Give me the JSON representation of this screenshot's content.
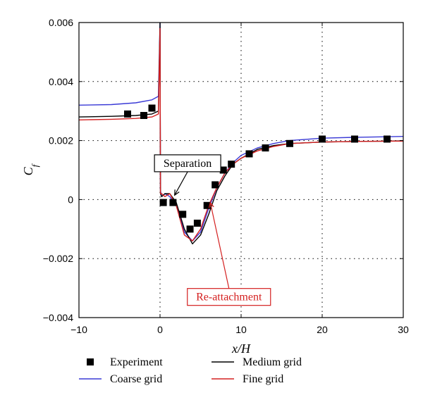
{
  "chart_data": {
    "type": "line",
    "xlabel": "x/H",
    "ylabel": "C_f",
    "xlim": [
      -10,
      30
    ],
    "ylim": [
      -0.004,
      0.006
    ],
    "x_ticks": [
      {
        "v": -10,
        "label": "−10"
      },
      {
        "v": 0,
        "label": "0"
      },
      {
        "v": 10,
        "label": "10"
      },
      {
        "v": 20,
        "label": "20"
      },
      {
        "v": 30,
        "label": "30"
      }
    ],
    "y_ticks": [
      {
        "v": -0.004,
        "label": "−0.004"
      },
      {
        "v": -0.002,
        "label": "−0.002"
      },
      {
        "v": 0,
        "label": "0"
      },
      {
        "v": 0.002,
        "label": "0.002"
      },
      {
        "v": 0.004,
        "label": "0.004"
      },
      {
        "v": 0.006,
        "label": "0.006"
      }
    ],
    "grid": "dotted at major ticks",
    "series": [
      {
        "name": "Coarse grid",
        "style": "line",
        "color": "#3a3ad6",
        "x": [
          -10,
          -6,
          -3,
          -1,
          -0.2,
          0,
          0.05,
          0.2,
          0.6,
          1.2,
          2,
          3,
          4,
          5,
          6,
          7,
          8,
          9,
          10,
          12,
          14,
          16,
          20,
          24,
          28,
          30
        ],
        "y": [
          0.0032,
          0.00322,
          0.00328,
          0.00338,
          0.0035,
          0.006,
          0.0003,
          0.0001,
          0.0002,
          0.0001,
          -0.0002,
          -0.0011,
          -0.0014,
          -0.0011,
          -0.0003,
          0.0004,
          0.0009,
          0.00125,
          0.0015,
          0.00175,
          0.0019,
          0.002,
          0.00208,
          0.00211,
          0.00213,
          0.00214
        ]
      },
      {
        "name": "Medium grid",
        "style": "line",
        "color": "#000000",
        "x": [
          -10,
          -6,
          -3,
          -1,
          -0.2,
          0,
          0.05,
          0.2,
          0.6,
          1.2,
          2,
          3,
          4,
          5,
          6,
          7,
          8,
          9,
          10,
          12,
          14,
          16,
          20,
          24,
          28,
          30
        ],
        "y": [
          0.0028,
          0.00282,
          0.00285,
          0.0029,
          0.003,
          0.006,
          0.0002,
          0.0001,
          0.0002,
          0.0002,
          -0.0001,
          -0.001,
          -0.0015,
          -0.0012,
          -0.0005,
          0.0003,
          0.0008,
          0.0012,
          0.0014,
          0.0017,
          0.00183,
          0.0019,
          0.00195,
          0.00197,
          0.00198,
          0.00199
        ]
      },
      {
        "name": "Fine grid",
        "style": "line",
        "color": "#d42020",
        "x": [
          -10,
          -6,
          -3,
          -1,
          -0.2,
          0,
          0.05,
          0.2,
          0.6,
          1.2,
          2,
          3,
          4,
          5,
          6,
          7,
          8,
          9,
          10,
          12,
          14,
          16,
          20,
          24,
          28,
          30
        ],
        "y": [
          0.0027,
          0.00272,
          0.00275,
          0.0028,
          0.0029,
          0.0058,
          0.0002,
          0.0002,
          0.0001,
          0.0002,
          -0.0002,
          -0.0012,
          -0.0014,
          -0.001,
          -0.0002,
          0.0004,
          0.0009,
          0.0012,
          0.0014,
          0.00165,
          0.0018,
          0.0019,
          0.00195,
          0.00197,
          0.00198,
          0.00198
        ]
      },
      {
        "name": "Experiment",
        "style": "marker",
        "color": "#000000",
        "x": [
          -4,
          -2,
          -1,
          0.4,
          1.6,
          2.8,
          3.7,
          4.6,
          5.8,
          6.8,
          7.8,
          8.8,
          11,
          13,
          16,
          20,
          24,
          28
        ],
        "y": [
          0.0029,
          0.00285,
          0.0031,
          -0.0001,
          -0.0001,
          -0.0005,
          -0.001,
          -0.0008,
          -0.0002,
          0.0005,
          0.001,
          0.0012,
          0.00155,
          0.00175,
          0.0019,
          0.00205,
          0.00205,
          0.00205
        ]
      }
    ],
    "annotations": [
      {
        "text": "Separation",
        "color": "#000000",
        "box_at": {
          "x": 3.4,
          "y": 0.00123
        },
        "points_to": {
          "x": 1.8,
          "y": 0.00015
        }
      },
      {
        "text": "Re-attachment",
        "color": "#d42020",
        "box_at": {
          "x": 8.5,
          "y": -0.0033
        },
        "points_to": {
          "x": 6.2,
          "y": -0.0001
        }
      }
    ],
    "legend": {
      "placement": "below",
      "entries": [
        {
          "label": "Experiment",
          "kind": "marker",
          "color": "#000000"
        },
        {
          "label": "Medium grid",
          "kind": "line",
          "color": "#000000"
        },
        {
          "label": "Coarse grid",
          "kind": "line",
          "color": "#3a3ad6"
        },
        {
          "label": "Fine grid",
          "kind": "line",
          "color": "#d42020"
        }
      ]
    }
  }
}
